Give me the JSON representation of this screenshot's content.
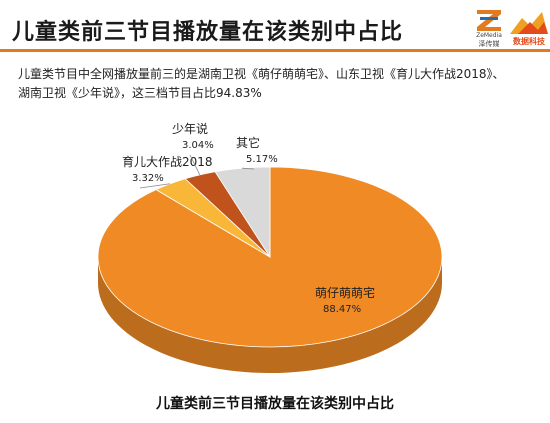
{
  "header": {
    "title": "儿童类前三节目播放量在该类别中占比",
    "logo_zemedia_text": "ZeMedia",
    "logo_zemedia_cn": "泽传媒",
    "logo_data_text": "数据科技"
  },
  "description": {
    "line1": "儿童类节目中全网播放量前三的是湖南卫视《萌仔萌萌宅》、山东卫视《育儿大作战2018》、",
    "line2": "湖南卫视《少年说》，这三档节目占比94.83%"
  },
  "caption": "儿童类前三节目播放量在该类别中占比",
  "colors": {
    "accent": "#e07b1f",
    "slice_main": "#f08a24",
    "slice_yuer": "#f9b73a",
    "slice_shaonian": "#c0531b",
    "slice_other": "#d9d9d9"
  },
  "chart_data": {
    "type": "pie",
    "title": "",
    "slices": [
      {
        "label": "萌仔萌萌宅",
        "value": 88.47,
        "value_label": "88.47%"
      },
      {
        "label": "育儿大作战2018",
        "value": 3.32,
        "value_label": "3.32%"
      },
      {
        "label": "少年说",
        "value": 3.04,
        "value_label": "3.04%"
      },
      {
        "label": "其它",
        "value": 5.17,
        "value_label": "5.17%"
      }
    ],
    "legend": "none",
    "style": "3d"
  }
}
